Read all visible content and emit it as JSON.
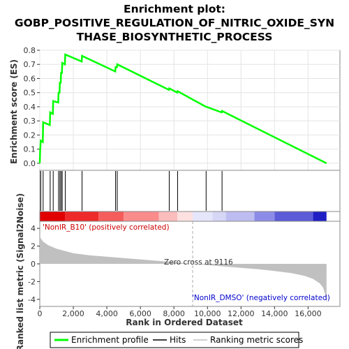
{
  "title_lines": [
    "Enrichment plot:",
    "GOBP_POSITIVE_REGULATION_OF_NITRIC_OXIDE_SYN",
    "THASE_BIOSYNTHETIC_PROCESS"
  ],
  "colors": {
    "es_line": "#00ff00",
    "hit": "#000000",
    "metric_fill": "#c0c0c0",
    "pos_label": "#cc0000",
    "neg_label": "#0000cc",
    "zero_cross_line": "#aaaaaa"
  },
  "chart_data": [
    {
      "type": "line",
      "name": "enrichment-score",
      "ylabel": "Enrichment score (ES)",
      "xlim": [
        0,
        17900
      ],
      "ylim": [
        -0.05,
        0.8
      ],
      "yticks": [
        0.0,
        0.1,
        0.2,
        0.3,
        0.4,
        0.5,
        0.6,
        0.7,
        0.8
      ],
      "ytick_labels": [
        "0.0",
        "0.1",
        "0.2",
        "0.3",
        "0.4",
        "0.5",
        "0.6",
        "0.7",
        "0.8"
      ],
      "grid": true,
      "x": [
        0,
        20,
        60,
        180,
        200,
        600,
        620,
        780,
        800,
        1100,
        1120,
        1180,
        1200,
        1250,
        1270,
        1320,
        1340,
        1500,
        1520,
        2500,
        2520,
        4500,
        4520,
        4600,
        4620,
        7700,
        7720,
        8200,
        8220,
        9900,
        9920,
        10850,
        10870,
        17100
      ],
      "y": [
        0.0,
        0.09,
        0.16,
        0.15,
        0.29,
        0.27,
        0.36,
        0.35,
        0.44,
        0.43,
        0.5,
        0.5,
        0.57,
        0.57,
        0.64,
        0.64,
        0.71,
        0.7,
        0.77,
        0.72,
        0.76,
        0.65,
        0.68,
        0.68,
        0.7,
        0.52,
        0.53,
        0.5,
        0.51,
        0.4,
        0.4,
        0.36,
        0.37,
        0.0
      ]
    },
    {
      "type": "hits",
      "name": "hits",
      "x": [
        60,
        200,
        620,
        800,
        1120,
        1200,
        1270,
        1340,
        1520,
        2520,
        4520,
        4620,
        7720,
        8220,
        9920,
        10870
      ]
    },
    {
      "type": "area",
      "name": "ranked-list-metric",
      "ylabel": "Ranked list metric (Signal2Noise)",
      "xlabel": "Rank in Ordered Dataset",
      "xlim": [
        0,
        17900
      ],
      "ylim": [
        -4.8,
        4.8
      ],
      "yticks": [
        -4,
        -2,
        0,
        2,
        4
      ],
      "ytick_labels": [
        "-4",
        "-2",
        "0",
        "2",
        "4"
      ],
      "xticks": [
        0,
        2000,
        4000,
        6000,
        8000,
        10000,
        12000,
        14000,
        16000
      ],
      "xtick_labels": [
        "0",
        "2,000",
        "4,000",
        "6,000",
        "8,000",
        "10,000",
        "12,000",
        "14,000",
        "16,000"
      ],
      "x": [
        0,
        50,
        200,
        500,
        1000,
        2000,
        3000,
        4000,
        5000,
        6000,
        7000,
        8000,
        9116,
        10000,
        11000,
        12000,
        13000,
        14000,
        15000,
        15800,
        16300,
        16700,
        16900,
        17000,
        17100
      ],
      "y": [
        3.3,
        2.9,
        2.5,
        2.1,
        1.7,
        1.2,
        0.95,
        0.8,
        0.65,
        0.5,
        0.35,
        0.2,
        0.0,
        -0.15,
        -0.3,
        -0.45,
        -0.6,
        -0.8,
        -1.05,
        -1.35,
        -1.7,
        -2.2,
        -2.7,
        -3.3,
        -4.4
      ],
      "zero_cross": 9116,
      "zero_cross_label": "Zero cross at 9116",
      "pos_label": "'NonIR_B10' (positively correlated)",
      "neg_label": "'NonIR_DMSO' (negatively correlated)"
    }
  ],
  "legend": {
    "placement": "bottom",
    "entries": [
      {
        "label": "Enrichment profile",
        "kind": "line",
        "color": "#00ff00"
      },
      {
        "label": "Hits",
        "kind": "line",
        "color": "#000000"
      },
      {
        "label": "Ranking metric scores",
        "kind": "line",
        "color": "#c0c0c0"
      }
    ]
  }
}
